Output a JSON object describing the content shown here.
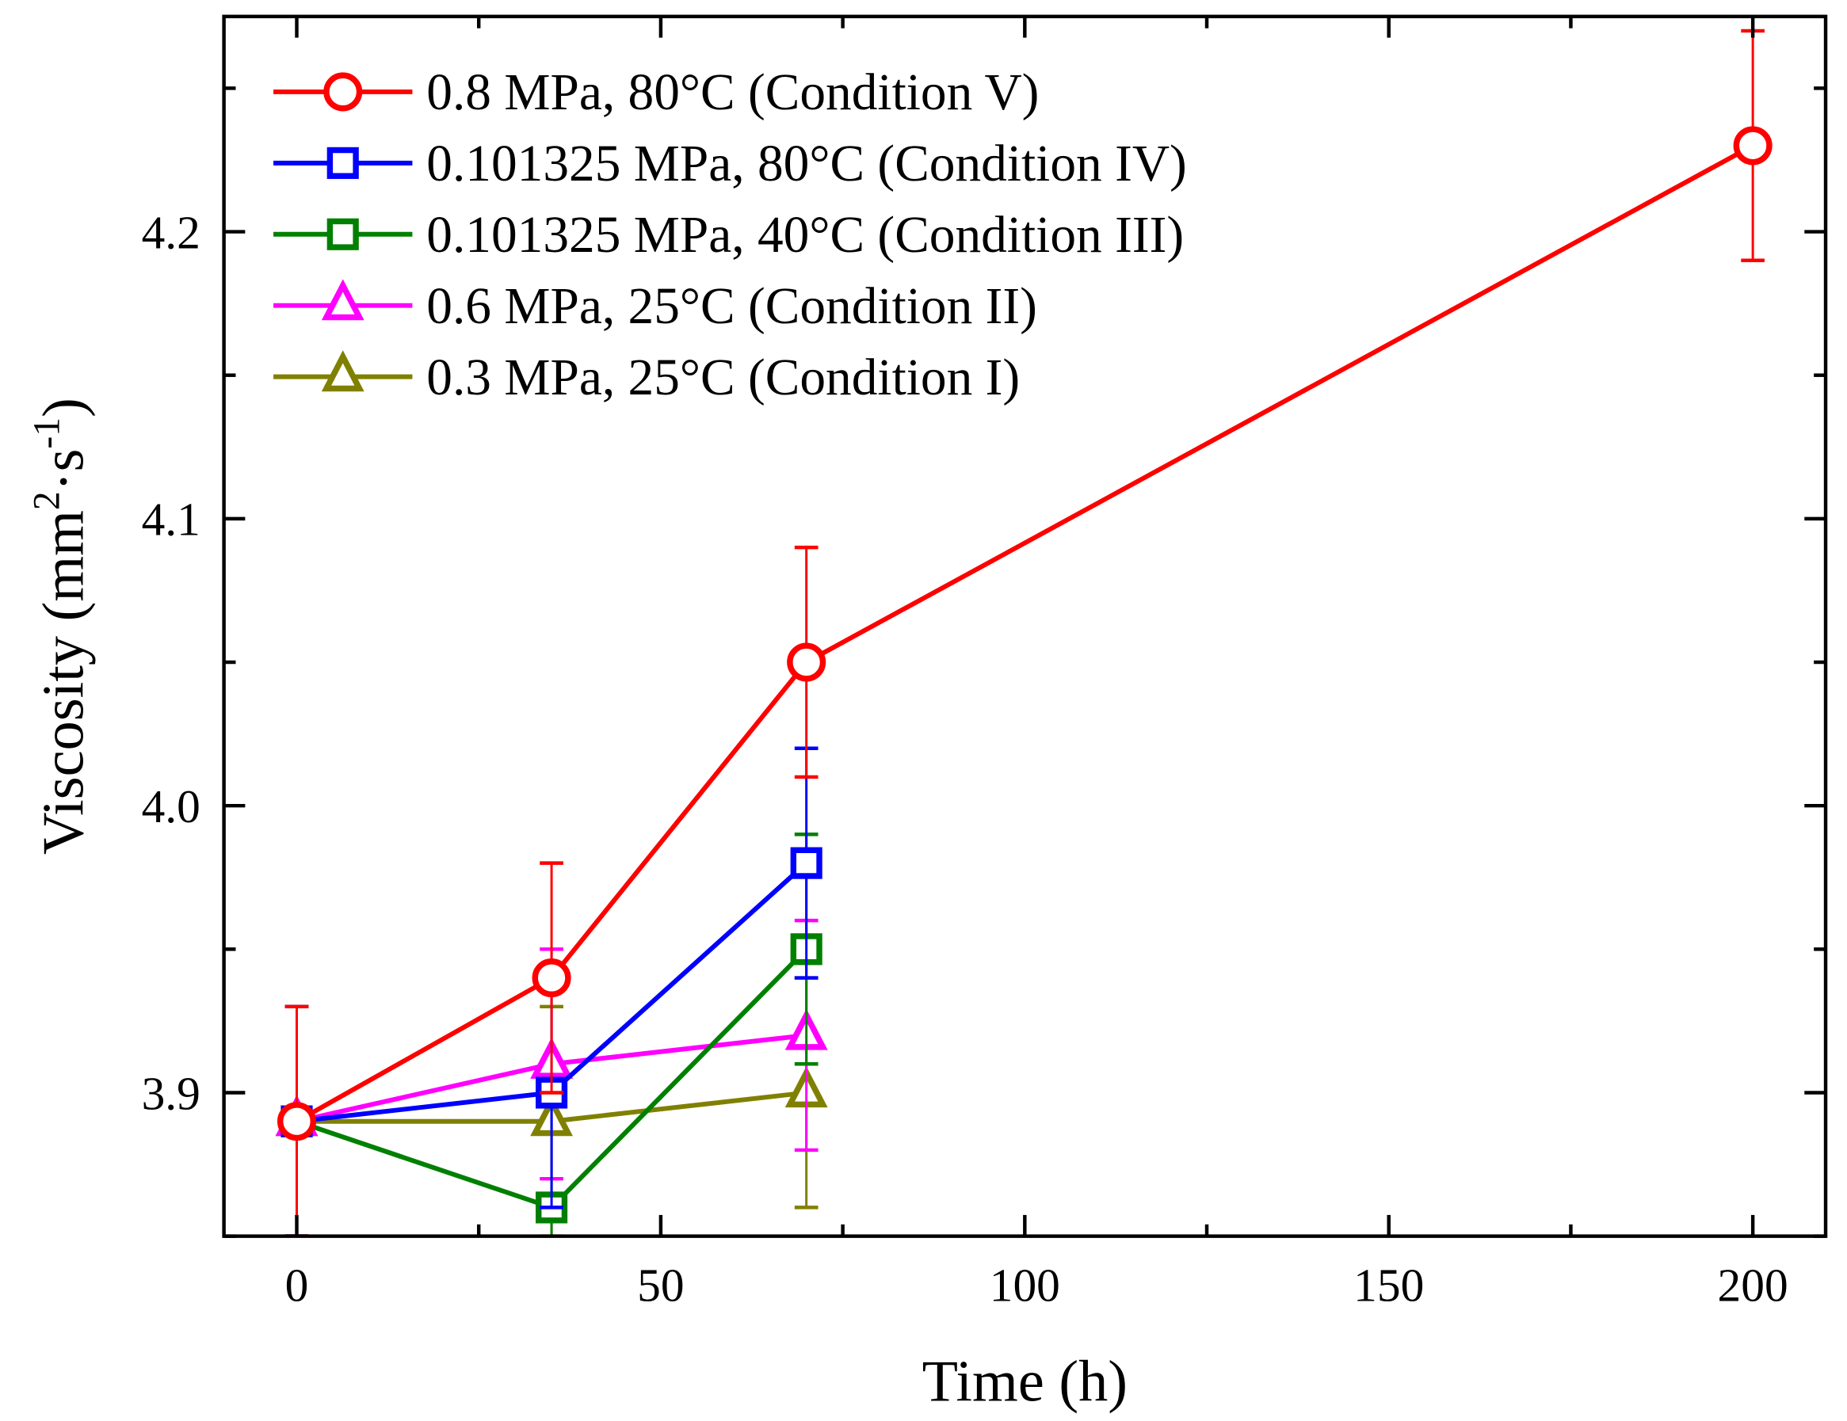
{
  "chart_data": {
    "type": "line",
    "title": "",
    "xlabel": "Time (h)",
    "ylabel": "Viscosity (mm²·s⁻¹)",
    "ylabel_main": "Viscosity (mm",
    "ylabel_sup1": "2",
    "ylabel_mid": "·s",
    "ylabel_sup2": "-1",
    "ylabel_end": ")",
    "xlim": [
      -10,
      210
    ],
    "ylim": [
      3.85,
      4.275
    ],
    "xticks": [
      0,
      50,
      100,
      150,
      200
    ],
    "xtick_labels": [
      "0",
      "50",
      "100",
      "150",
      "200"
    ],
    "yticks": [
      3.9,
      4.0,
      4.1,
      4.2
    ],
    "ytick_labels": [
      "3.9",
      "4.0",
      "4.1",
      "4.2"
    ],
    "legend_position": "top-left",
    "series": [
      {
        "name": "0.8 MPa, 80°C (Condition V)",
        "color": "#ff0000",
        "marker": "circle",
        "x": [
          0,
          35,
          70,
          200
        ],
        "y": [
          3.89,
          3.94,
          4.05,
          4.23
        ],
        "err": [
          0.04,
          0.04,
          0.04,
          0.04
        ]
      },
      {
        "name": "0.101325 MPa, 80°C (Condition IV)",
        "color": "#0000ff",
        "marker": "square",
        "x": [
          0,
          35,
          70
        ],
        "y": [
          3.89,
          3.9,
          3.98
        ],
        "err": [
          0.04,
          0.04,
          0.04
        ]
      },
      {
        "name": "0.101325 MPa, 40°C (Condition III)",
        "color": "#008000",
        "marker": "square",
        "x": [
          0,
          35,
          70
        ],
        "y": [
          3.89,
          3.86,
          3.95
        ],
        "err": [
          0.04,
          0.04,
          0.04
        ]
      },
      {
        "name": "0.6 MPa, 25°C (Condition II)",
        "color": "#ff00ff",
        "marker": "triangle",
        "x": [
          0,
          35,
          70
        ],
        "y": [
          3.89,
          3.91,
          3.92
        ],
        "err": [
          0.04,
          0.04,
          0.04
        ]
      },
      {
        "name": "0.3 MPa, 25°C (Condition I)",
        "color": "#808000",
        "marker": "triangle",
        "x": [
          0,
          35,
          70
        ],
        "y": [
          3.89,
          3.89,
          3.9
        ],
        "err": [
          0.04,
          0.04,
          0.04
        ]
      }
    ]
  }
}
